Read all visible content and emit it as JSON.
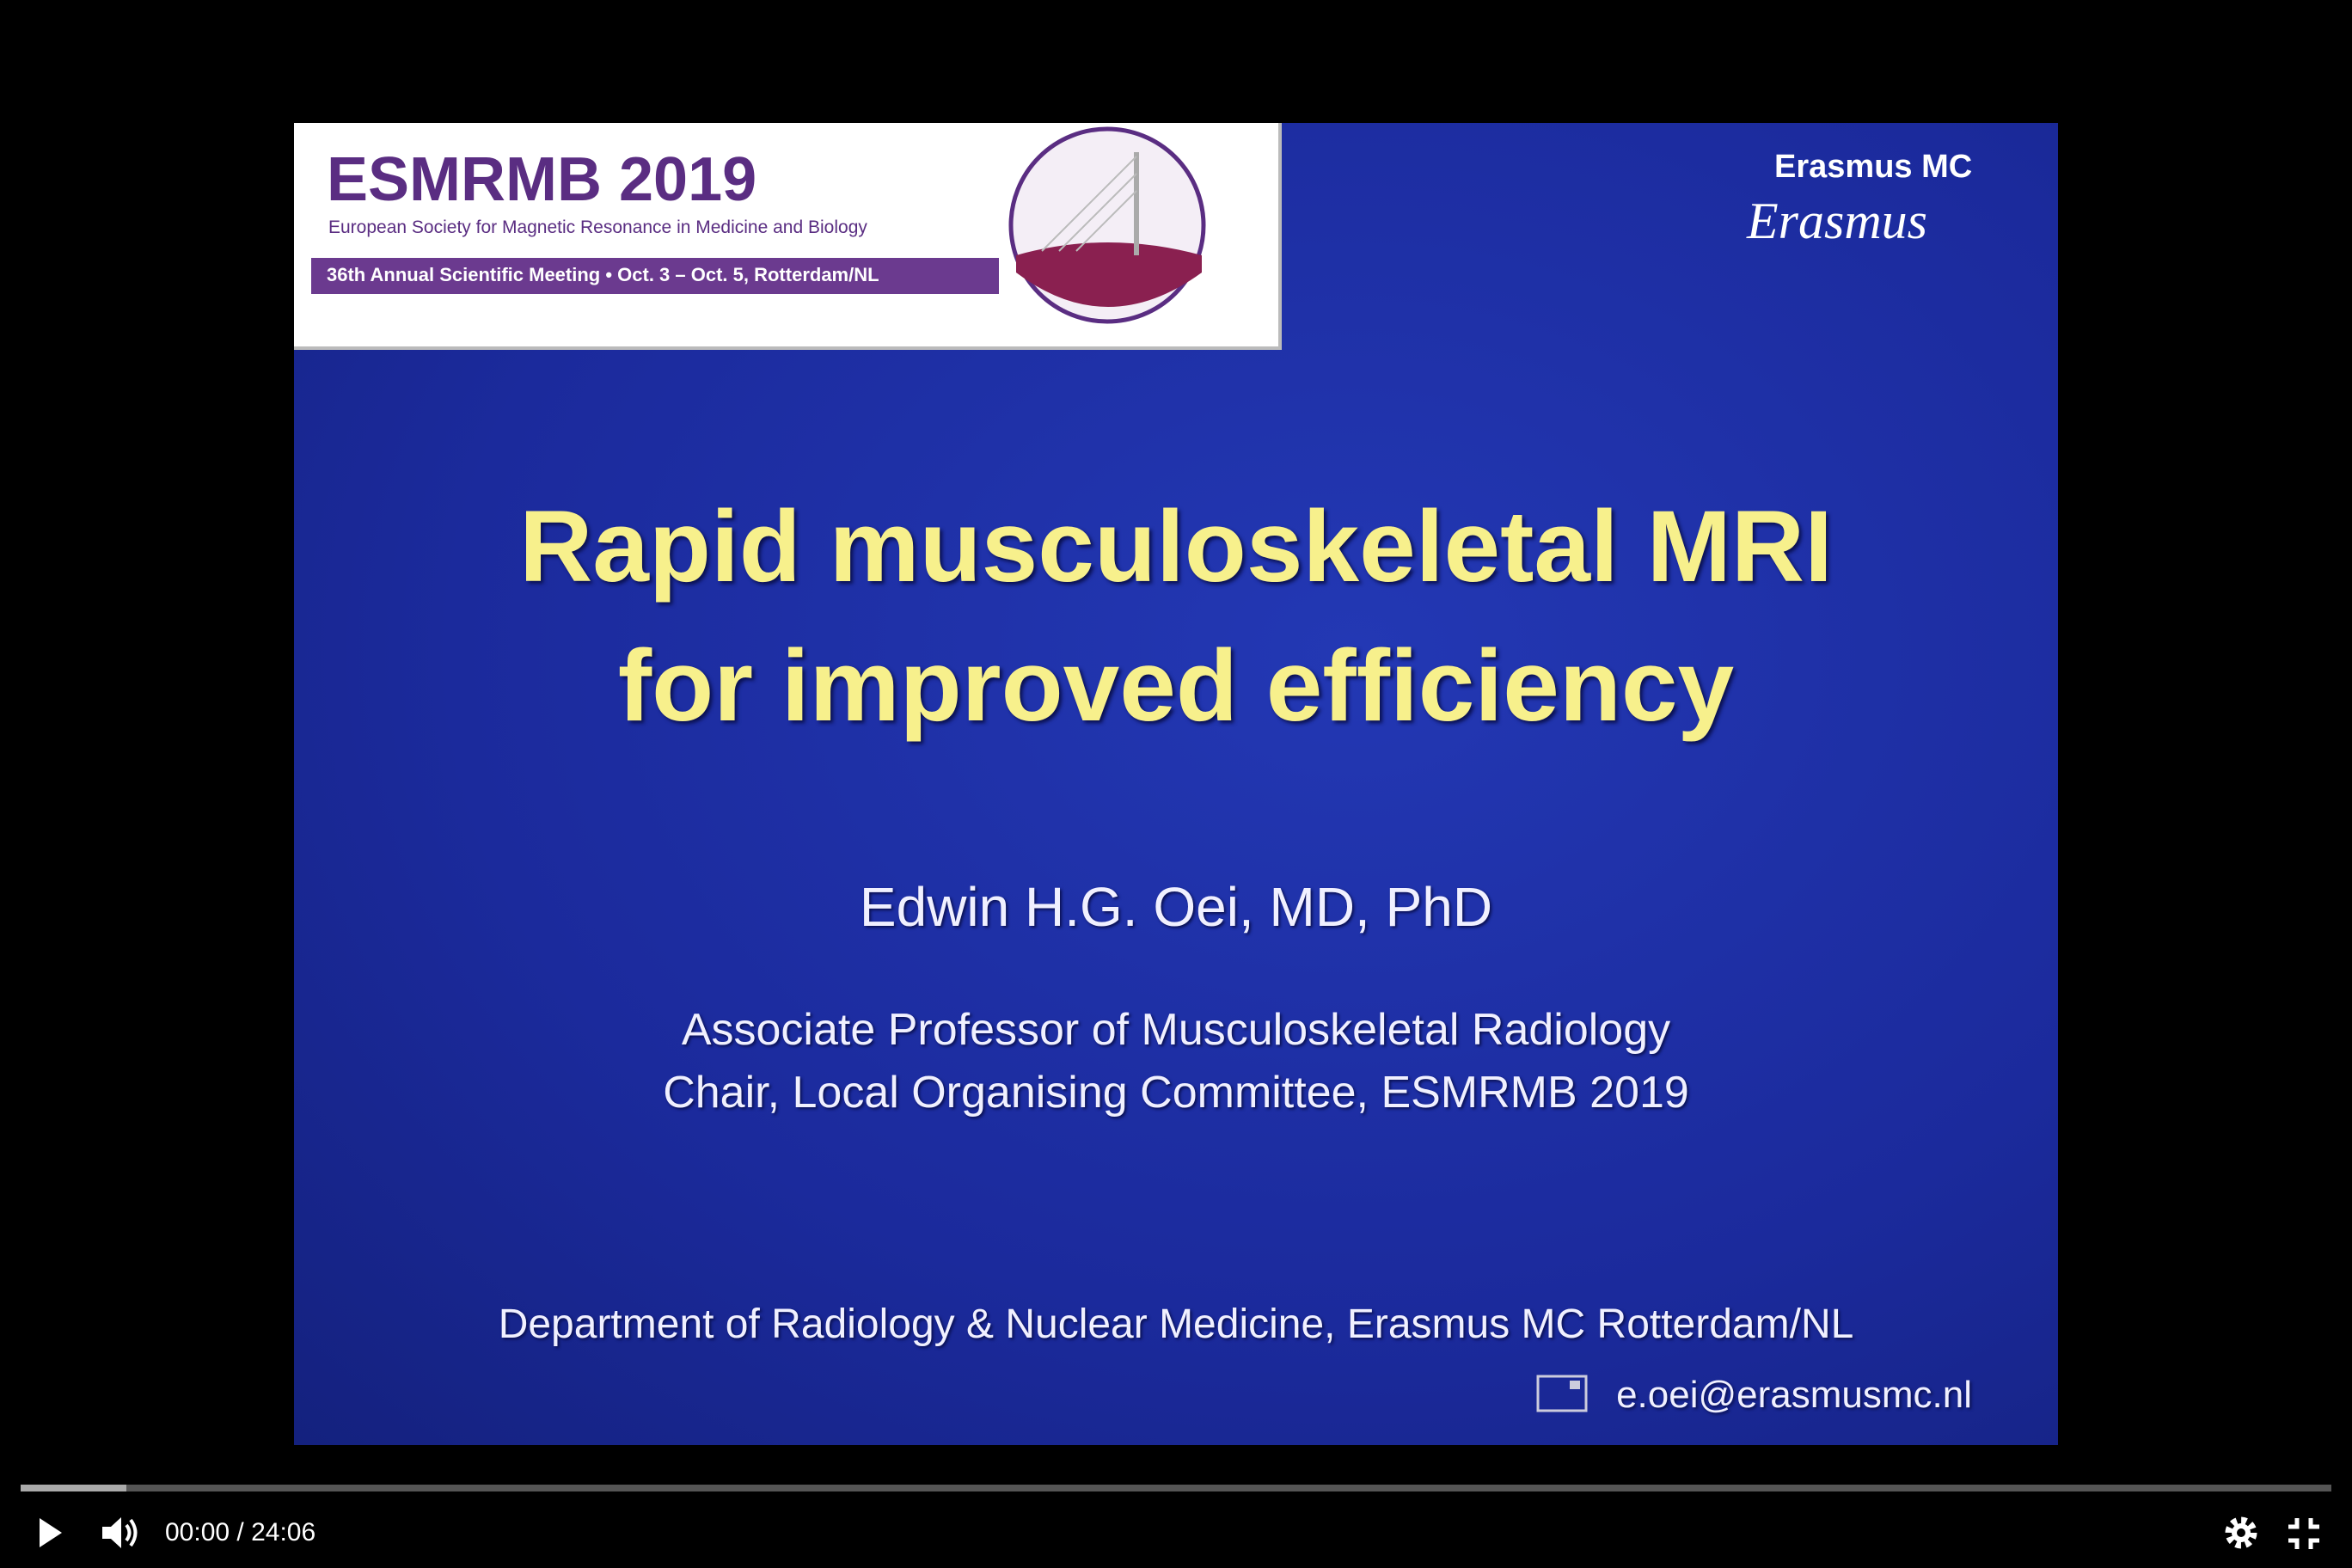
{
  "slide": {
    "banner": {
      "title": "ESMRMB 2019",
      "subtitle": "European Society for Magnetic Resonance in Medicine and Biology",
      "meeting": "36th Annual Scientific Meeting • Oct. 3 – Oct. 5, Rotterdam/NL"
    },
    "logo": {
      "name": "Erasmus MC",
      "script": "Erasmus"
    },
    "title": [
      "Rapid musculoskeletal MRI",
      "for improved efficiency"
    ],
    "author": "Edwin H.G. Oei, MD, PhD",
    "roles": [
      "Associate Professor of Musculoskeletal Radiology",
      "Chair, Local Organising Committee, ESMRMB 2019"
    ],
    "department": "Department of Radiology & Nuclear Medicine, Erasmus MC Rotterdam/NL",
    "email": "e.oei@erasmusmc.nl"
  },
  "player": {
    "time": "00:00 / 24:06"
  }
}
